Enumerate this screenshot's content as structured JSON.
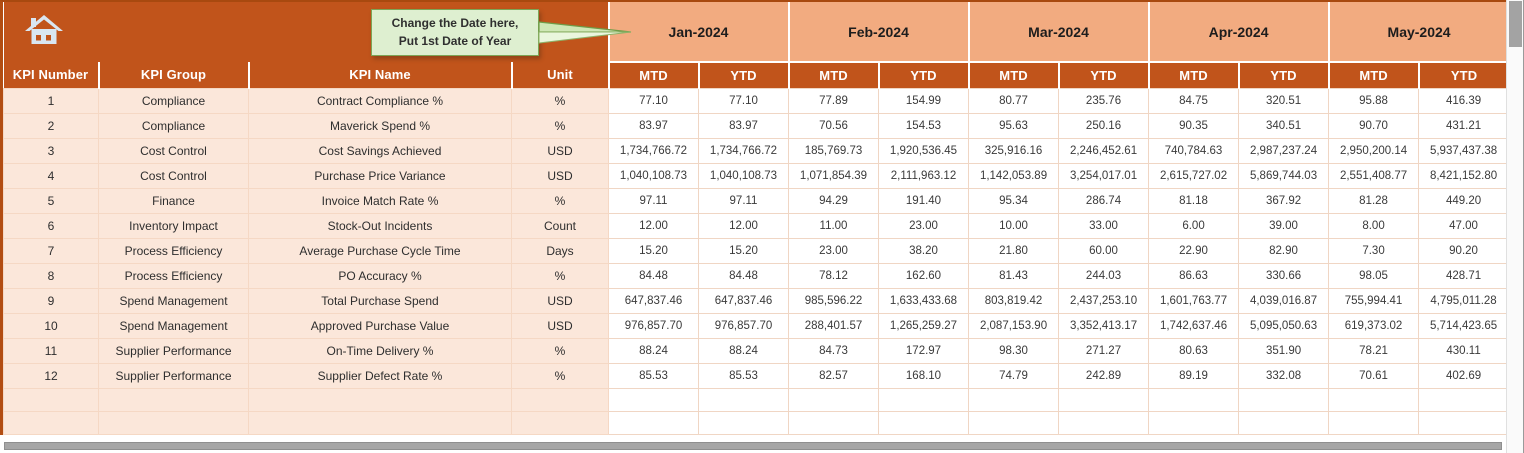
{
  "callout": {
    "line1": "Change the Date here,",
    "line2": "Put 1st Date of Year"
  },
  "icons": {
    "home": "house"
  },
  "colors": {
    "header": "#C1541B",
    "month_band": "#F2AB80",
    "row_band": "#FBE7DA",
    "callout_bg": "#DEEFD0",
    "callout_border": "#7DA556"
  },
  "table": {
    "column_headers": [
      "KPI Number",
      "KPI Group",
      "KPI Name",
      "Unit"
    ],
    "months": [
      "Jan-2024",
      "Feb-2024",
      "Mar-2024",
      "Apr-2024",
      "May-2024"
    ],
    "period_headers": [
      "MTD",
      "YTD"
    ],
    "empty_rows": 2,
    "rows": [
      {
        "num": "1",
        "group": "Compliance",
        "name": "Contract Compliance %",
        "unit": "%",
        "values": [
          "77.10",
          "77.10",
          "77.89",
          "154.99",
          "80.77",
          "235.76",
          "84.75",
          "320.51",
          "95.88",
          "416.39"
        ]
      },
      {
        "num": "2",
        "group": "Compliance",
        "name": "Maverick Spend %",
        "unit": "%",
        "values": [
          "83.97",
          "83.97",
          "70.56",
          "154.53",
          "95.63",
          "250.16",
          "90.35",
          "340.51",
          "90.70",
          "431.21"
        ]
      },
      {
        "num": "3",
        "group": "Cost Control",
        "name": "Cost Savings Achieved",
        "unit": "USD",
        "values": [
          "1,734,766.72",
          "1,734,766.72",
          "185,769.73",
          "1,920,536.45",
          "325,916.16",
          "2,246,452.61",
          "740,784.63",
          "2,987,237.24",
          "2,950,200.14",
          "5,937,437.38"
        ]
      },
      {
        "num": "4",
        "group": "Cost Control",
        "name": "Purchase Price Variance",
        "unit": "USD",
        "values": [
          "1,040,108.73",
          "1,040,108.73",
          "1,071,854.39",
          "2,111,963.12",
          "1,142,053.89",
          "3,254,017.01",
          "2,615,727.02",
          "5,869,744.03",
          "2,551,408.77",
          "8,421,152.80"
        ]
      },
      {
        "num": "5",
        "group": "Finance",
        "name": "Invoice Match Rate %",
        "unit": "%",
        "values": [
          "97.11",
          "97.11",
          "94.29",
          "191.40",
          "95.34",
          "286.74",
          "81.18",
          "367.92",
          "81.28",
          "449.20"
        ]
      },
      {
        "num": "6",
        "group": "Inventory Impact",
        "name": "Stock-Out Incidents",
        "unit": "Count",
        "values": [
          "12.00",
          "12.00",
          "11.00",
          "23.00",
          "10.00",
          "33.00",
          "6.00",
          "39.00",
          "8.00",
          "47.00"
        ]
      },
      {
        "num": "7",
        "group": "Process Efficiency",
        "name": "Average Purchase Cycle Time",
        "unit": "Days",
        "values": [
          "15.20",
          "15.20",
          "23.00",
          "38.20",
          "21.80",
          "60.00",
          "22.90",
          "82.90",
          "7.30",
          "90.20"
        ]
      },
      {
        "num": "8",
        "group": "Process Efficiency",
        "name": "PO Accuracy %",
        "unit": "%",
        "values": [
          "84.48",
          "84.48",
          "78.12",
          "162.60",
          "81.43",
          "244.03",
          "86.63",
          "330.66",
          "98.05",
          "428.71"
        ]
      },
      {
        "num": "9",
        "group": "Spend Management",
        "name": "Total Purchase Spend",
        "unit": "USD",
        "values": [
          "647,837.46",
          "647,837.46",
          "985,596.22",
          "1,633,433.68",
          "803,819.42",
          "2,437,253.10",
          "1,601,763.77",
          "4,039,016.87",
          "755,994.41",
          "4,795,011.28"
        ]
      },
      {
        "num": "10",
        "group": "Spend Management",
        "name": "Approved Purchase Value",
        "unit": "USD",
        "values": [
          "976,857.70",
          "976,857.70",
          "288,401.57",
          "1,265,259.27",
          "2,087,153.90",
          "3,352,413.17",
          "1,742,637.46",
          "5,095,050.63",
          "619,373.02",
          "5,714,423.65"
        ]
      },
      {
        "num": "11",
        "group": "Supplier Performance",
        "name": "On-Time Delivery %",
        "unit": "%",
        "values": [
          "88.24",
          "88.24",
          "84.73",
          "172.97",
          "98.30",
          "271.27",
          "80.63",
          "351.90",
          "78.21",
          "430.11"
        ]
      },
      {
        "num": "12",
        "group": "Supplier Performance",
        "name": "Supplier Defect Rate %",
        "unit": "%",
        "values": [
          "85.53",
          "85.53",
          "82.57",
          "168.10",
          "74.79",
          "242.89",
          "89.19",
          "332.08",
          "70.61",
          "402.69"
        ]
      }
    ]
  }
}
